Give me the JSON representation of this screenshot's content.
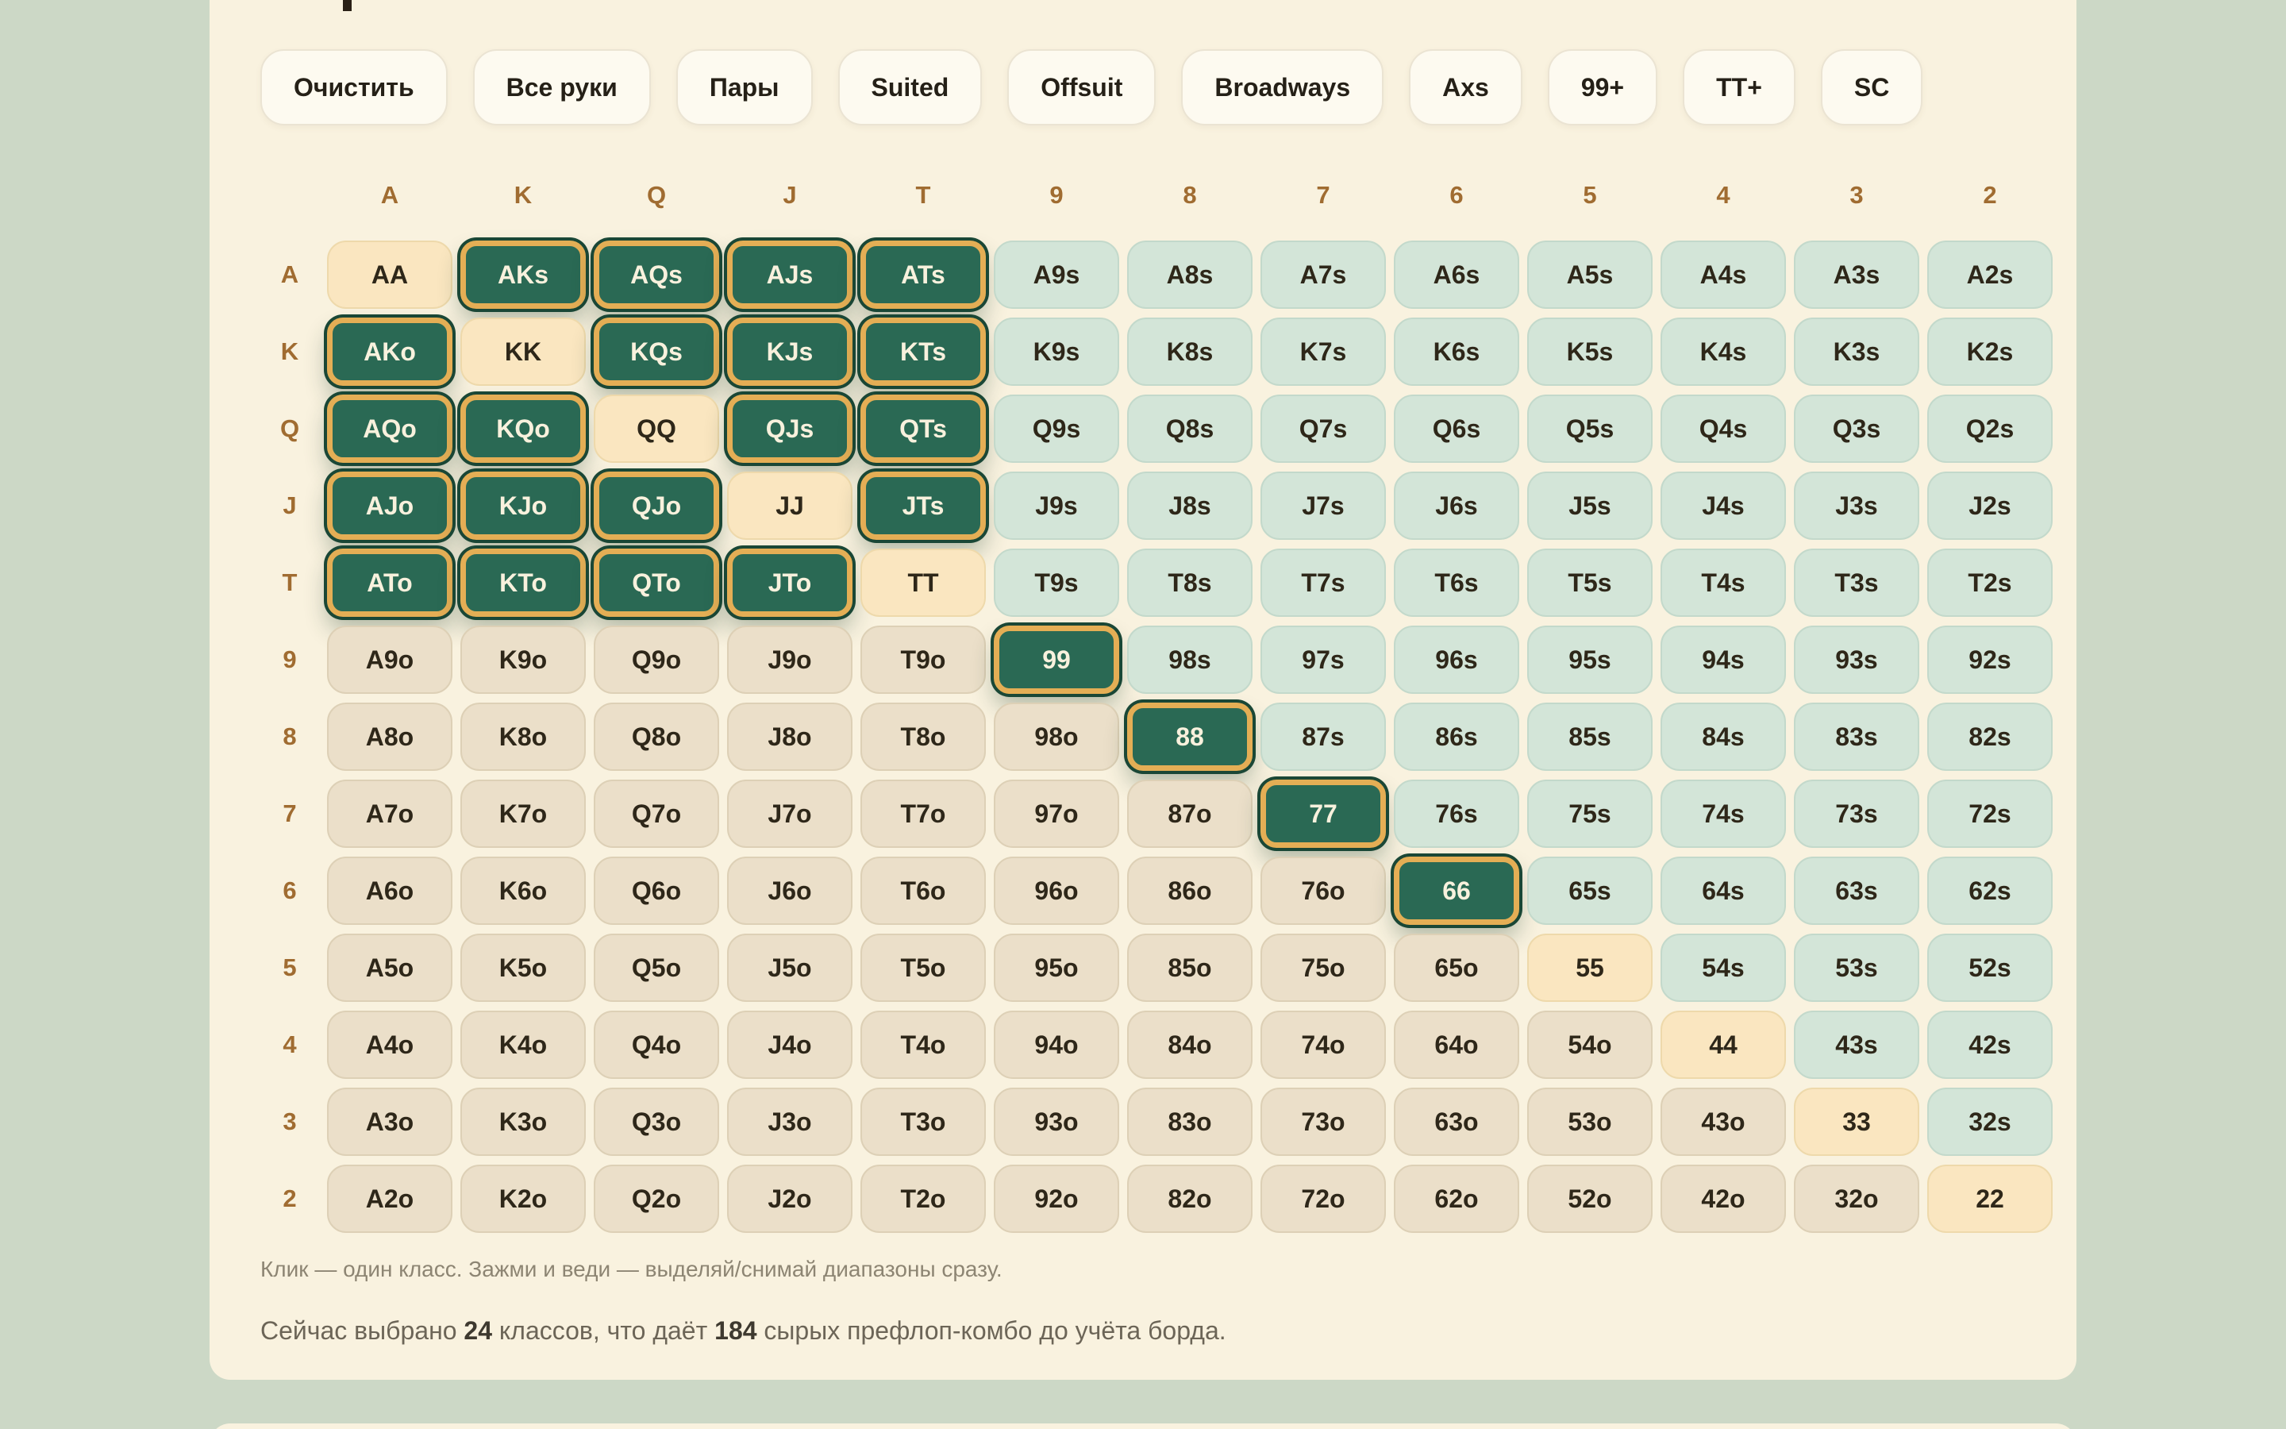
{
  "colors": {
    "page_bg": "#ccd8c6",
    "panel_bg": "#f9f2df",
    "button_bg": "#fdfaf0",
    "button_border": "#ebe4d3",
    "button_text": "#252017",
    "header_text": "#a06c31",
    "cell_text": "#2e2719",
    "pair_bg": "#fae6c0",
    "pair_border": "#eed9ab",
    "suited_bg": "#d3e5d8",
    "suited_border": "#c3d9cb",
    "offsuit_bg": "#ebdfc9",
    "offsuit_border": "#ddd0b6",
    "selected_bg": "#2a6954",
    "selected_gold": "#e4ae55",
    "selected_ring": "#1a4736",
    "selected_text": "#f8f1dd",
    "hint_text": "#8d8573",
    "summary_text": "#6c6557",
    "summary_strong": "#3e392f",
    "title_fragment": "#2a2016"
  },
  "toolbar": {
    "buttons": [
      "Очистить",
      "Все руки",
      "Пары",
      "Suited",
      "Offsuit",
      "Broadways",
      "Axs",
      "99+",
      "TT+",
      "SC"
    ]
  },
  "grid": {
    "column_headers": [
      "A",
      "K",
      "Q",
      "J",
      "T",
      "9",
      "8",
      "7",
      "6",
      "5",
      "4",
      "3",
      "2"
    ],
    "row_headers": [
      "A",
      "K",
      "Q",
      "J",
      "T",
      "9",
      "8",
      "7",
      "6",
      "5",
      "4",
      "3",
      "2"
    ],
    "matrix": [
      [
        "AA",
        "AKs",
        "AQs",
        "AJs",
        "ATs",
        "A9s",
        "A8s",
        "A7s",
        "A6s",
        "A5s",
        "A4s",
        "A3s",
        "A2s"
      ],
      [
        "AKo",
        "KK",
        "KQs",
        "KJs",
        "KTs",
        "K9s",
        "K8s",
        "K7s",
        "K6s",
        "K5s",
        "K4s",
        "K3s",
        "K2s"
      ],
      [
        "AQo",
        "KQo",
        "QQ",
        "QJs",
        "QTs",
        "Q9s",
        "Q8s",
        "Q7s",
        "Q6s",
        "Q5s",
        "Q4s",
        "Q3s",
        "Q2s"
      ],
      [
        "AJo",
        "KJo",
        "QJo",
        "JJ",
        "JTs",
        "J9s",
        "J8s",
        "J7s",
        "J6s",
        "J5s",
        "J4s",
        "J3s",
        "J2s"
      ],
      [
        "ATo",
        "KTo",
        "QTo",
        "JTo",
        "TT",
        "T9s",
        "T8s",
        "T7s",
        "T6s",
        "T5s",
        "T4s",
        "T3s",
        "T2s"
      ],
      [
        "A9o",
        "K9o",
        "Q9o",
        "J9o",
        "T9o",
        "99",
        "98s",
        "97s",
        "96s",
        "95s",
        "94s",
        "93s",
        "92s"
      ],
      [
        "A8o",
        "K8o",
        "Q8o",
        "J8o",
        "T8o",
        "98o",
        "88",
        "87s",
        "86s",
        "85s",
        "84s",
        "83s",
        "82s"
      ],
      [
        "A7o",
        "K7o",
        "Q7o",
        "J7o",
        "T7o",
        "97o",
        "87o",
        "77",
        "76s",
        "75s",
        "74s",
        "73s",
        "72s"
      ],
      [
        "A6o",
        "K6o",
        "Q6o",
        "J6o",
        "T6o",
        "96o",
        "86o",
        "76o",
        "66",
        "65s",
        "64s",
        "63s",
        "62s"
      ],
      [
        "A5o",
        "K5o",
        "Q5o",
        "J5o",
        "T5o",
        "95o",
        "85o",
        "75o",
        "65o",
        "55",
        "54s",
        "53s",
        "52s"
      ],
      [
        "A4o",
        "K4o",
        "Q4o",
        "J4o",
        "T4o",
        "94o",
        "84o",
        "74o",
        "64o",
        "54o",
        "44",
        "43s",
        "42s"
      ],
      [
        "A3o",
        "K3o",
        "Q3o",
        "J3o",
        "T3o",
        "93o",
        "83o",
        "73o",
        "63o",
        "53o",
        "43o",
        "33",
        "32s"
      ],
      [
        "A2o",
        "K2o",
        "Q2o",
        "J2o",
        "T2o",
        "92o",
        "82o",
        "72o",
        "62o",
        "52o",
        "42o",
        "32o",
        "22"
      ]
    ],
    "selected": [
      "AKs",
      "AQs",
      "AJs",
      "ATs",
      "AKo",
      "KQs",
      "KJs",
      "KTs",
      "AQo",
      "KQo",
      "QJs",
      "QTs",
      "AJo",
      "KJo",
      "QJo",
      "JTs",
      "ATo",
      "KTo",
      "QTo",
      "JTo",
      "99",
      "88",
      "77",
      "66"
    ]
  },
  "footer": {
    "hint": "Клик — один класс. Зажми и веди — выделяй/снимай диапазоны сразу.",
    "summary_prefix": "Сейчас выбрано ",
    "summary_count": "24",
    "summary_mid": " классов, что даёт ",
    "summary_combos": "184",
    "summary_suffix": " сырых префлоп-комбо до учёта борда."
  }
}
